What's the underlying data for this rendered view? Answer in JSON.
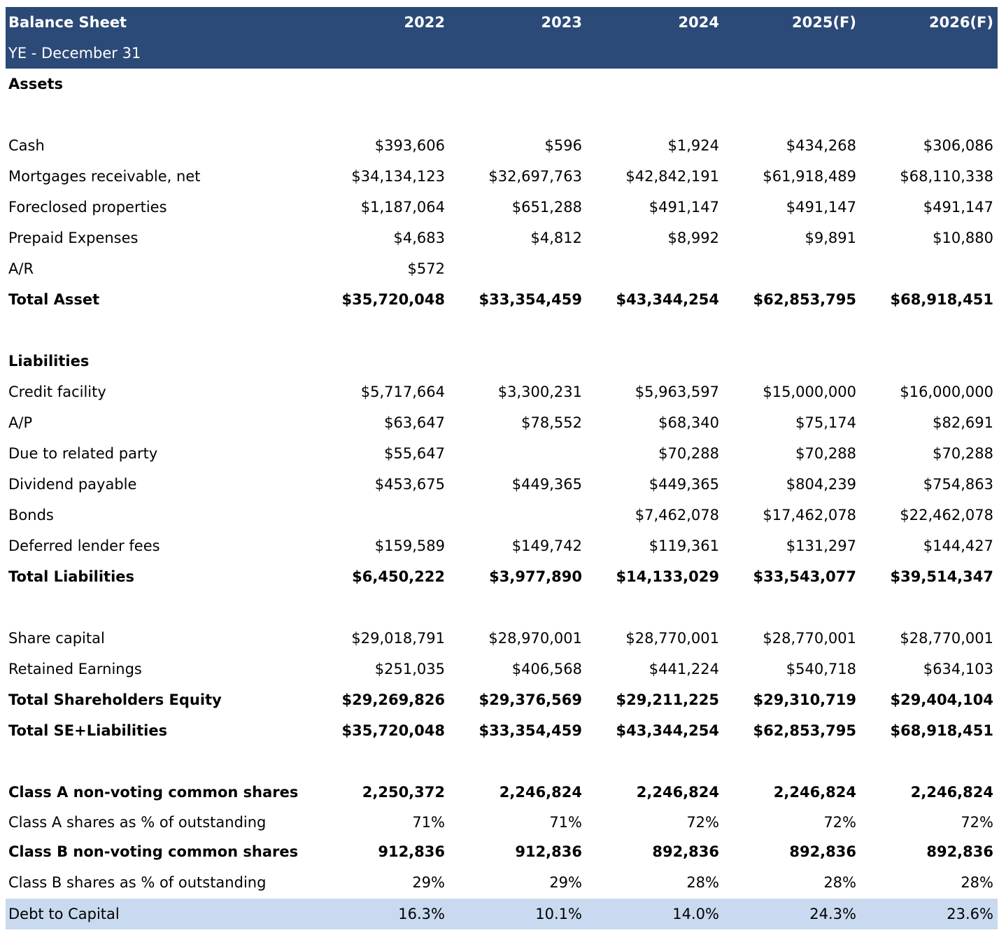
{
  "header": {
    "title": "Balance Sheet",
    "subtitle": "YE - December 31",
    "years": [
      "2022",
      "2023",
      "2024",
      "2025(F)",
      "2026(F)"
    ]
  },
  "sections": {
    "assets": "Assets",
    "liabilities": "Liabilities"
  },
  "rows": [
    {
      "label": "Cash",
      "values": [
        "$393,606",
        "$596",
        "$1,924",
        "$434,268",
        "$306,086"
      ]
    },
    {
      "label": "Mortgages receivable, net",
      "values": [
        "$34,134,123",
        "$32,697,763",
        "$42,842,191",
        "$61,918,489",
        "$68,110,338"
      ]
    },
    {
      "label": "Foreclosed properties",
      "values": [
        "$1,187,064",
        "$651,288",
        "$491,147",
        "$491,147",
        "$491,147"
      ]
    },
    {
      "label": "Prepaid Expenses",
      "values": [
        "$4,683",
        "$4,812",
        "$8,992",
        "$9,891",
        "$10,880"
      ]
    },
    {
      "label": "A/R",
      "values": [
        "$572",
        "",
        "",
        "",
        ""
      ]
    },
    {
      "label": "Total Asset",
      "values": [
        "$35,720,048",
        "$33,354,459",
        "$43,344,254",
        "$62,853,795",
        "$68,918,451"
      ]
    },
    {
      "label": "Credit facility",
      "values": [
        "$5,717,664",
        "$3,300,231",
        "$5,963,597",
        "$15,000,000",
        "$16,000,000"
      ]
    },
    {
      "label": "A/P",
      "values": [
        "$63,647",
        "$78,552",
        "$68,340",
        "$75,174",
        "$82,691"
      ]
    },
    {
      "label": "Due to related party",
      "values": [
        "$55,647",
        "",
        "$70,288",
        "$70,288",
        "$70,288"
      ]
    },
    {
      "label": "Dividend payable",
      "values": [
        "$453,675",
        "$449,365",
        "$449,365",
        "$804,239",
        "$754,863"
      ]
    },
    {
      "label": "Bonds",
      "values": [
        "",
        "",
        "$7,462,078",
        "$17,462,078",
        "$22,462,078"
      ]
    },
    {
      "label": "Deferred lender fees",
      "values": [
        "$159,589",
        "$149,742",
        "$119,361",
        "$131,297",
        "$144,427"
      ]
    },
    {
      "label": "Total Liabilities",
      "values": [
        "$6,450,222",
        "$3,977,890",
        "$14,133,029",
        "$33,543,077",
        "$39,514,347"
      ]
    },
    {
      "label": "Share capital",
      "values": [
        "$29,018,791",
        "$28,970,001",
        "$28,770,001",
        "$28,770,001",
        "$28,770,001"
      ]
    },
    {
      "label": "Retained Earnings",
      "values": [
        "$251,035",
        "$406,568",
        "$441,224",
        "$540,718",
        "$634,103"
      ]
    },
    {
      "label": "Total Shareholders Equity",
      "values": [
        "$29,269,826",
        "$29,376,569",
        "$29,211,225",
        "$29,310,719",
        "$29,404,104"
      ]
    },
    {
      "label": "Total SE+Liabilities",
      "values": [
        "$35,720,048",
        "$33,354,459",
        "$43,344,254",
        "$62,853,795",
        "$68,918,451"
      ]
    },
    {
      "label": "Class A non-voting common shares",
      "values": [
        "2,250,372",
        "2,246,824",
        "2,246,824",
        "2,246,824",
        "2,246,824"
      ]
    },
    {
      "label": "Class A shares as % of outstanding",
      "values": [
        "71%",
        "71%",
        "72%",
        "72%",
        "72%"
      ]
    },
    {
      "label": "Class B non-voting common shares",
      "values": [
        "912,836",
        "912,836",
        "892,836",
        "892,836",
        "892,836"
      ]
    },
    {
      "label": "Class B shares as % of outstanding",
      "values": [
        "29%",
        "29%",
        "28%",
        "28%",
        "28%"
      ]
    },
    {
      "label": "Debt to Capital",
      "values": [
        "16.3%",
        "10.1%",
        "14.0%",
        "24.3%",
        "23.6%"
      ]
    }
  ]
}
